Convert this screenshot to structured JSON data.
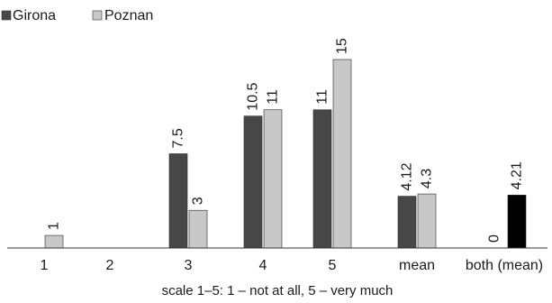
{
  "chart_data": {
    "type": "bar",
    "categories": [
      "1",
      "2",
      "3",
      "4",
      "5",
      "mean",
      "both (mean)"
    ],
    "series": [
      {
        "name": "Girona",
        "color": "#474747",
        "values": [
          0,
          0,
          7.5,
          10.5,
          11,
          4.12,
          null
        ],
        "labels": [
          "",
          "",
          "7.5",
          "10.5",
          "11",
          "4.12",
          ""
        ]
      },
      {
        "name": "Poznan",
        "color": "#c8c8c8",
        "values": [
          1,
          0,
          3,
          11,
          15,
          4.3,
          null
        ],
        "labels": [
          "1",
          "",
          "3",
          "11",
          "15",
          "4.3",
          ""
        ]
      }
    ],
    "both_mean": {
      "color": "#000000",
      "zero_label": "0",
      "value": 4.21,
      "label": "4.21"
    },
    "title": "",
    "xlabel": "scale 1–5: 1 – not at all, 5 – very much",
    "ylabel": "",
    "ylim": [
      0,
      16
    ],
    "grid": false,
    "legend_position": "top-left"
  }
}
